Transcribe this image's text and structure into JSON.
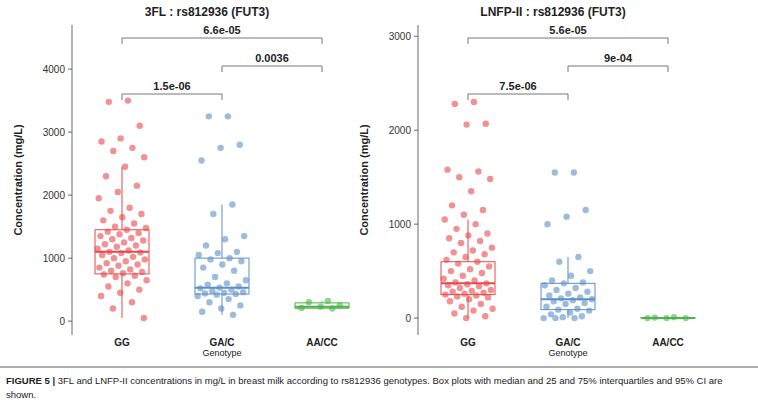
{
  "chart_data": [
    {
      "type": "box",
      "title": "3FL : rs812936 (FUT3)",
      "y_label": "Concentration (mg/L)",
      "x_label": "Genotype",
      "categories": [
        "GG",
        "GA/C",
        "AA/CC"
      ],
      "colors": [
        "#e8474b",
        "#5b8fc7",
        "#4db34a"
      ],
      "ylim": [
        -220,
        4700
      ],
      "yticks": [
        0,
        1000,
        2000,
        3000,
        4000
      ],
      "grid": false,
      "boxes": [
        {
          "min": 50,
          "q1": 750,
          "median": 1100,
          "q3": 1450,
          "max": 2450
        },
        {
          "min": 100,
          "q1": 430,
          "median": 530,
          "q3": 1000,
          "max": 1850
        },
        {
          "min": 200,
          "q1": 205,
          "median": 230,
          "q3": 290,
          "max": 320
        }
      ],
      "points": [
        [
          3500,
          3480,
          3100,
          2900,
          2850,
          2750,
          2700,
          2600,
          2450,
          2300,
          2150,
          2050,
          1950,
          1800,
          1750,
          1700,
          1650,
          1600,
          1550,
          1500,
          1480,
          1450,
          1420,
          1400,
          1380,
          1350,
          1320,
          1300,
          1280,
          1250,
          1220,
          1200,
          1180,
          1150,
          1120,
          1100,
          1090,
          1080,
          1050,
          1020,
          1000,
          980,
          950,
          920,
          900,
          880,
          850,
          820,
          800,
          780,
          760,
          740,
          720,
          700,
          650,
          600,
          550,
          500,
          450,
          400,
          300,
          200,
          50
        ],
        [
          3250,
          3250,
          2800,
          2750,
          2550,
          1850,
          1700,
          1350,
          1300,
          1200,
          1100,
          1080,
          1050,
          1000,
          980,
          950,
          900,
          850,
          800,
          700,
          650,
          600,
          580,
          550,
          530,
          520,
          500,
          480,
          460,
          450,
          440,
          430,
          420,
          400,
          350,
          300,
          250,
          200,
          150,
          100
        ],
        [
          320,
          300,
          250,
          230,
          210,
          200
        ]
      ],
      "comparisons": [
        {
          "groups": [
            "GG",
            "AA/CC"
          ],
          "label": "6.6e-05"
        },
        {
          "groups": [
            "GA/C",
            "AA/CC"
          ],
          "label": "0.0036"
        },
        {
          "groups": [
            "GG",
            "GA/C"
          ],
          "label": "1.5e-06"
        }
      ]
    },
    {
      "type": "box",
      "title": "LNFP-II : rs812936 (FUT3)",
      "y_label": "Concentration (mg/L)",
      "x_label": "Genotype",
      "categories": [
        "GG",
        "GA/C",
        "AA/CC"
      ],
      "colors": [
        "#e8474b",
        "#5b8fc7",
        "#4db34a"
      ],
      "ylim": [
        -180,
        3120
      ],
      "yticks": [
        0,
        1000,
        2000,
        3000
      ],
      "grid": false,
      "boxes": [
        {
          "min": 0,
          "q1": 250,
          "median": 370,
          "q3": 600,
          "max": 1050
        },
        {
          "min": 0,
          "q1": 90,
          "median": 200,
          "q3": 370,
          "max": 650
        },
        {
          "min": 0,
          "q1": 0,
          "median": 0,
          "q3": 5,
          "max": 10
        }
      ],
      "points": [
        [
          2300,
          2280,
          2070,
          2060,
          1580,
          1560,
          1500,
          1480,
          1350,
          1200,
          1150,
          1100,
          1050,
          1000,
          950,
          900,
          880,
          850,
          820,
          800,
          750,
          720,
          700,
          680,
          650,
          620,
          600,
          580,
          550,
          520,
          500,
          480,
          450,
          420,
          400,
          380,
          370,
          360,
          350,
          340,
          320,
          300,
          290,
          280,
          270,
          260,
          250,
          240,
          230,
          220,
          200,
          180,
          150,
          120,
          100,
          80,
          50,
          20,
          0
        ],
        [
          1550,
          1550,
          1150,
          1080,
          1000,
          650,
          600,
          500,
          450,
          400,
          380,
          370,
          350,
          320,
          300,
          280,
          260,
          240,
          220,
          210,
          200,
          190,
          180,
          160,
          150,
          120,
          100,
          90,
          80,
          60,
          40,
          20,
          10,
          0,
          0,
          0
        ],
        [
          10,
          5,
          0,
          0,
          0
        ]
      ],
      "comparisons": [
        {
          "groups": [
            "GG",
            "AA/CC"
          ],
          "label": "5.6e-05"
        },
        {
          "groups": [
            "GA/C",
            "AA/CC"
          ],
          "label": "9e-04"
        },
        {
          "groups": [
            "GG",
            "GA/C"
          ],
          "label": "7.5e-06"
        }
      ]
    }
  ],
  "caption": {
    "label": "FIGURE 5 |",
    "text": "3FL and LNFP-II concentrations in mg/L in breast milk according to rs812936 genotypes. Box plots with median and 25 and 75% interquartiles and 95% CI are shown."
  }
}
